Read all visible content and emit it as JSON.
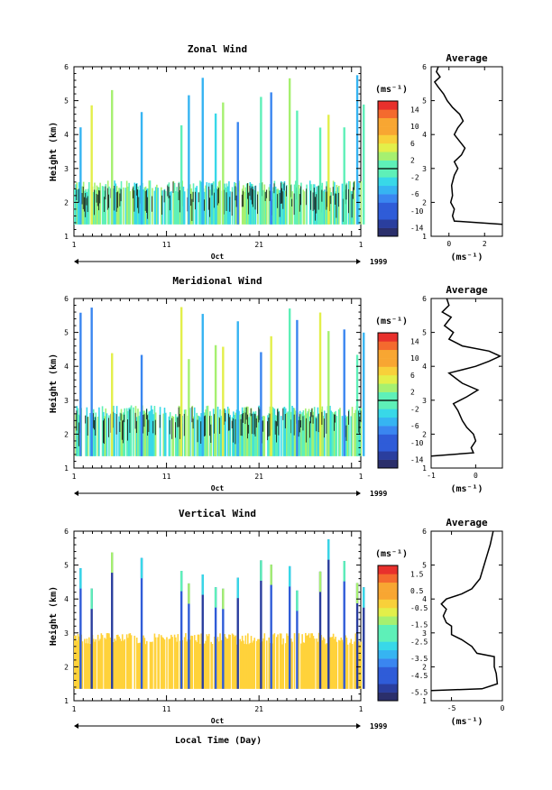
{
  "figure": {
    "xlabel": "Local Time (Day)",
    "month_label": "Oct",
    "year_label": "1999",
    "avg_xlabel": "(ms⁻¹)",
    "cb_unit": "(ms⁻¹)",
    "ylabel": "Height (km)"
  },
  "panels": [
    {
      "title": "Zonal Wind",
      "avg_title": "Average",
      "x_ticks": [
        "1",
        "11",
        "21",
        "1"
      ],
      "y_ticks": [
        "1",
        "2",
        "3",
        "4",
        "5",
        "6"
      ],
      "colorbar_ticks": [
        "14",
        "10",
        "6",
        "2",
        "-2",
        "-6",
        "-10",
        "-14"
      ],
      "avg_x_ticks": [
        "0",
        "2"
      ]
    },
    {
      "title": "Meridional Wind",
      "avg_title": "Average",
      "x_ticks": [
        "1",
        "11",
        "21",
        "1"
      ],
      "y_ticks": [
        "1",
        "2",
        "3",
        "4",
        "5",
        "6"
      ],
      "colorbar_ticks": [
        "14",
        "10",
        "6",
        "2",
        "-2",
        "-6",
        "-10",
        "-14"
      ],
      "avg_x_ticks": [
        "-1",
        "0"
      ]
    },
    {
      "title": "Vertical Wind",
      "avg_title": "Average",
      "x_ticks": [
        "1",
        "11",
        "21",
        "1"
      ],
      "y_ticks": [
        "1",
        "2",
        "3",
        "4",
        "5",
        "6"
      ],
      "colorbar_ticks": [
        "1.5",
        "0.5",
        "-0.5",
        "-1.5",
        "-2.5",
        "-3.5",
        "-4.5",
        "-5.5"
      ],
      "avg_x_ticks": [
        "-5",
        "0"
      ]
    }
  ],
  "chart_data": [
    {
      "type": "heatmap",
      "title": "Zonal Wind",
      "xlabel": "",
      "ylabel": "Height (km)",
      "xlim": [
        1,
        32
      ],
      "ylim": [
        1,
        6
      ],
      "colorbar": {
        "unit": "(ms⁻¹)",
        "range": [
          -16,
          16
        ],
        "ticks": [
          14,
          10,
          6,
          2,
          -2,
          -6,
          -10,
          -14
        ]
      },
      "average_profile": {
        "title": "Average",
        "xlabel": "(ms⁻¹)",
        "xlim": [
          -1,
          3
        ],
        "ylim": [
          1,
          6
        ],
        "points": [
          [
            3.0,
            1.35
          ],
          [
            0.3,
            1.45
          ],
          [
            0.2,
            1.6
          ],
          [
            0.3,
            1.8
          ],
          [
            0.1,
            2.0
          ],
          [
            0.2,
            2.2
          ],
          [
            0.15,
            2.5
          ],
          [
            0.3,
            2.8
          ],
          [
            0.5,
            3.0
          ],
          [
            0.3,
            3.2
          ],
          [
            0.7,
            3.4
          ],
          [
            0.9,
            3.6
          ],
          [
            0.6,
            3.8
          ],
          [
            0.3,
            4.0
          ],
          [
            0.5,
            4.2
          ],
          [
            0.8,
            4.4
          ],
          [
            0.6,
            4.6
          ],
          [
            0.2,
            4.8
          ],
          [
            -0.1,
            5.0
          ],
          [
            -0.3,
            5.2
          ],
          [
            -0.6,
            5.4
          ],
          [
            -0.8,
            5.55
          ],
          [
            -0.5,
            5.7
          ],
          [
            -0.7,
            5.85
          ],
          [
            -0.6,
            6.0
          ]
        ]
      }
    },
    {
      "type": "heatmap",
      "title": "Meridional Wind",
      "xlabel": "",
      "ylabel": "Height (km)",
      "xlim": [
        1,
        32
      ],
      "ylim": [
        1,
        6
      ],
      "colorbar": {
        "unit": "(ms⁻¹)",
        "range": [
          -16,
          16
        ],
        "ticks": [
          14,
          10,
          6,
          2,
          -2,
          -6,
          -10,
          -14
        ]
      },
      "average_profile": {
        "title": "Average",
        "xlabel": "(ms⁻¹)",
        "xlim": [
          -1,
          0.6
        ],
        "ylim": [
          1,
          6
        ],
        "points": [
          [
            -1.0,
            1.35
          ],
          [
            -0.05,
            1.45
          ],
          [
            -0.1,
            1.6
          ],
          [
            0.0,
            1.8
          ],
          [
            -0.05,
            2.0
          ],
          [
            -0.2,
            2.2
          ],
          [
            -0.3,
            2.4
          ],
          [
            -0.4,
            2.7
          ],
          [
            -0.5,
            2.9
          ],
          [
            -0.2,
            3.1
          ],
          [
            0.05,
            3.3
          ],
          [
            -0.3,
            3.5
          ],
          [
            -0.5,
            3.7
          ],
          [
            -0.6,
            3.8
          ],
          [
            -0.3,
            3.9
          ],
          [
            0.0,
            4.0
          ],
          [
            0.3,
            4.15
          ],
          [
            0.55,
            4.3
          ],
          [
            0.3,
            4.45
          ],
          [
            -0.3,
            4.6
          ],
          [
            -0.6,
            4.8
          ],
          [
            -0.5,
            5.0
          ],
          [
            -0.7,
            5.2
          ],
          [
            -0.55,
            5.45
          ],
          [
            -0.75,
            5.6
          ],
          [
            -0.6,
            5.8
          ],
          [
            -0.65,
            6.0
          ]
        ]
      }
    },
    {
      "type": "heatmap",
      "title": "Vertical Wind",
      "xlabel": "Local Time (Day)",
      "ylabel": "Height (km)",
      "xlim": [
        1,
        32
      ],
      "ylim": [
        1,
        6
      ],
      "colorbar": {
        "unit": "(ms⁻¹)",
        "range": [
          -6,
          2
        ],
        "ticks": [
          1.5,
          0.5,
          -0.5,
          -1.5,
          -2.5,
          -3.5,
          -4.5,
          -5.5
        ]
      },
      "average_profile": {
        "title": "Average",
        "xlabel": "(ms⁻¹)",
        "xlim": [
          -7,
          0
        ],
        "ylim": [
          1,
          6
        ],
        "points": [
          [
            -7.0,
            1.3
          ],
          [
            -2.0,
            1.35
          ],
          [
            -0.5,
            1.5
          ],
          [
            -0.6,
            1.8
          ],
          [
            -0.8,
            2.0
          ],
          [
            -0.8,
            2.3
          ],
          [
            -2.5,
            2.4
          ],
          [
            -3.0,
            2.6
          ],
          [
            -4.0,
            2.8
          ],
          [
            -5.0,
            2.95
          ],
          [
            -5.0,
            3.2
          ],
          [
            -5.5,
            3.3
          ],
          [
            -5.8,
            3.5
          ],
          [
            -5.5,
            3.7
          ],
          [
            -6.0,
            3.85
          ],
          [
            -5.5,
            4.0
          ],
          [
            -4.0,
            4.15
          ],
          [
            -3.0,
            4.3
          ],
          [
            -2.2,
            4.6
          ],
          [
            -1.8,
            5.0
          ],
          [
            -1.5,
            5.3
          ],
          [
            -1.2,
            5.6
          ],
          [
            -0.9,
            6.0
          ]
        ]
      }
    }
  ],
  "colors": {
    "colormap": [
      "#2b2f6b",
      "#2a3e9e",
      "#2f5cd8",
      "#3a86f0",
      "#36b4f2",
      "#38d8e8",
      "#5ef0b8",
      "#a6f070",
      "#e3ef4a",
      "#f8d03a",
      "#f8a632",
      "#f46a2e",
      "#e8302c"
    ],
    "vertical_fill": "#ffd23a"
  }
}
